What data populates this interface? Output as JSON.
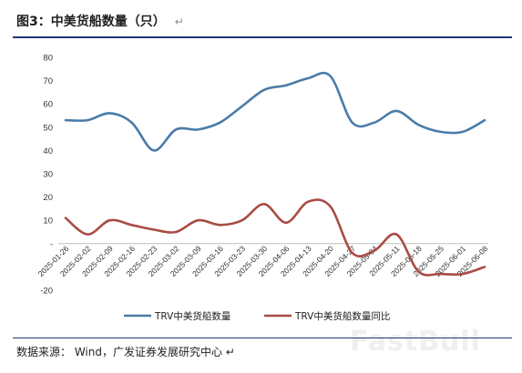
{
  "figure": {
    "title": "图3：中美货船数量（只）",
    "para_mark": "↵",
    "source": "数据来源：  Wind，广发证券发展研究中心 ↵",
    "watermark": "FastBull"
  },
  "chart_data": {
    "type": "line",
    "categories": [
      "2025-01-26",
      "2025-02-02",
      "2025-02-09",
      "2025-02-16",
      "2025-02-23",
      "2025-03-02",
      "2025-03-09",
      "2025-03-16",
      "2025-03-23",
      "2025-03-30",
      "2025-04-06",
      "2025-04-13",
      "2025-04-20",
      "2025-04-27",
      "2025-05-04",
      "2025-05-11",
      "2025-05-18",
      "2025-05-25",
      "2025-06-01",
      "2025-06-08"
    ],
    "series": [
      {
        "name": "TRV中美货船数量",
        "color": "#4a7ca8",
        "values": [
          53,
          53,
          56,
          52,
          40,
          49,
          49,
          52,
          59,
          66,
          68,
          71,
          72,
          52,
          52,
          57,
          51,
          48,
          48,
          53
        ]
      },
      {
        "name": "TRV中美货船数量同比",
        "color": "#a84c44",
        "values": [
          11,
          4,
          10,
          8,
          6,
          5,
          10,
          8,
          10,
          17,
          9,
          18,
          16,
          -4,
          -3,
          4,
          -12,
          -13,
          -13,
          -10
        ]
      }
    ],
    "ylim": [
      -20,
      80
    ],
    "yticks": [
      "80",
      "70",
      "60",
      "50",
      "40",
      "30",
      "20",
      "10",
      "-",
      "-20"
    ],
    "ytick_values": [
      80,
      70,
      60,
      50,
      40,
      30,
      20,
      10,
      0,
      -20
    ],
    "grid": false,
    "legend": "bottom"
  }
}
